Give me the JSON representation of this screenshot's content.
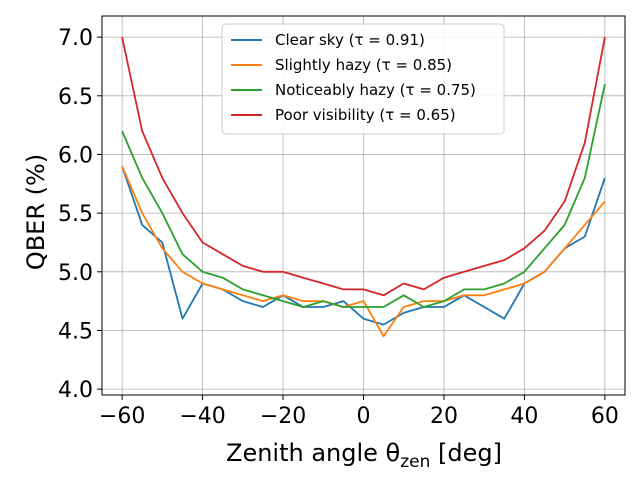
{
  "chart_data": {
    "type": "line",
    "title": "",
    "xlabel_main": "Zenith angle θ",
    "xlabel_sub": "zen",
    "xlabel_unit": " [deg]",
    "ylabel": "QBER (%)",
    "xlim": [
      -65,
      65
    ],
    "ylim": [
      3.95,
      7.18
    ],
    "xticks": [
      -60,
      -40,
      -20,
      0,
      20,
      40,
      60
    ],
    "xtick_labels": [
      "−60",
      "−40",
      "−20",
      "0",
      "20",
      "40",
      "60"
    ],
    "yticks": [
      4.0,
      4.5,
      5.0,
      5.5,
      6.0,
      6.5,
      7.0
    ],
    "ytick_labels": [
      "4.0",
      "4.5",
      "5.0",
      "5.5",
      "6.0",
      "6.5",
      "7.0"
    ],
    "grid": true,
    "legend_position": "top-center",
    "x": [
      -60,
      -55,
      -50,
      -45,
      -40,
      -35,
      -30,
      -25,
      -20,
      -15,
      -10,
      -5,
      0,
      5,
      10,
      15,
      20,
      25,
      30,
      35,
      40,
      45,
      50,
      55,
      60
    ],
    "series": [
      {
        "name": "Clear sky (τ = 0.91)",
        "color": "#1f77b4",
        "values": [
          5.9,
          5.4,
          5.25,
          4.6,
          4.9,
          4.85,
          4.75,
          4.7,
          4.8,
          4.7,
          4.7,
          4.75,
          4.6,
          4.55,
          4.65,
          4.7,
          4.7,
          4.8,
          4.7,
          4.6,
          4.9,
          5.0,
          5.2,
          5.3,
          5.8
        ]
      },
      {
        "name": "Slightly hazy (τ = 0.85)",
        "color": "#ff7f0e",
        "values": [
          5.9,
          5.5,
          5.2,
          5.0,
          4.9,
          4.85,
          4.8,
          4.75,
          4.8,
          4.75,
          4.75,
          4.7,
          4.75,
          4.45,
          4.7,
          4.75,
          4.75,
          4.8,
          4.8,
          4.85,
          4.9,
          5.0,
          5.2,
          5.4,
          5.6
        ]
      },
      {
        "name": "Noticeably hazy (τ = 0.75)",
        "color": "#2ca02c",
        "values": [
          6.2,
          5.8,
          5.5,
          5.15,
          5.0,
          4.95,
          4.85,
          4.8,
          4.75,
          4.7,
          4.75,
          4.7,
          4.7,
          4.7,
          4.8,
          4.7,
          4.75,
          4.85,
          4.85,
          4.9,
          5.0,
          5.2,
          5.4,
          5.8,
          6.6
        ]
      },
      {
        "name": "Poor visibility (τ = 0.65)",
        "color": "#d62728",
        "values": [
          7.0,
          6.2,
          5.8,
          5.5,
          5.25,
          5.15,
          5.05,
          5.0,
          5.0,
          4.95,
          4.9,
          4.85,
          4.85,
          4.8,
          4.9,
          4.85,
          4.95,
          5.0,
          5.05,
          5.1,
          5.2,
          5.35,
          5.6,
          6.1,
          7.0
        ]
      }
    ]
  }
}
